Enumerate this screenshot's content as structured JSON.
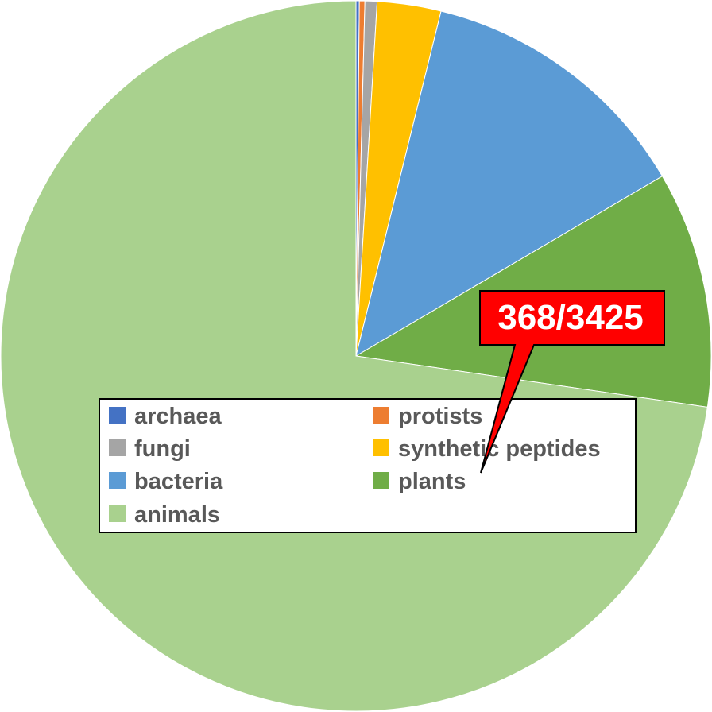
{
  "chart_data": {
    "type": "pie",
    "title": "",
    "start_angle_deg": 0,
    "direction": "clockwise",
    "slices": [
      {
        "label": "archaea",
        "value": 0.15,
        "color": "#4472C4"
      },
      {
        "label": "protists",
        "value": 0.25,
        "color": "#ED7D31"
      },
      {
        "label": "fungi",
        "value": 0.55,
        "color": "#A5A5A5"
      },
      {
        "label": "synthetic peptides",
        "value": 2.9,
        "color": "#FFC000"
      },
      {
        "label": "bacteria",
        "value": 12.7,
        "color": "#5B9BD5"
      },
      {
        "label": "plants",
        "value": 10.75,
        "color": "#70AD47"
      },
      {
        "label": "animals",
        "value": 72.7,
        "color": "#A9D18E"
      }
    ],
    "legend": {
      "placement": "center",
      "columns": 2,
      "order": [
        "archaea",
        "protists",
        "fungi",
        "synthetic peptides",
        "bacteria",
        "plants",
        "animals"
      ]
    },
    "annotation": {
      "text": "368/3425",
      "points_to": "plants",
      "fill": "#FF0000",
      "text_color": "#FFFFFF"
    }
  }
}
